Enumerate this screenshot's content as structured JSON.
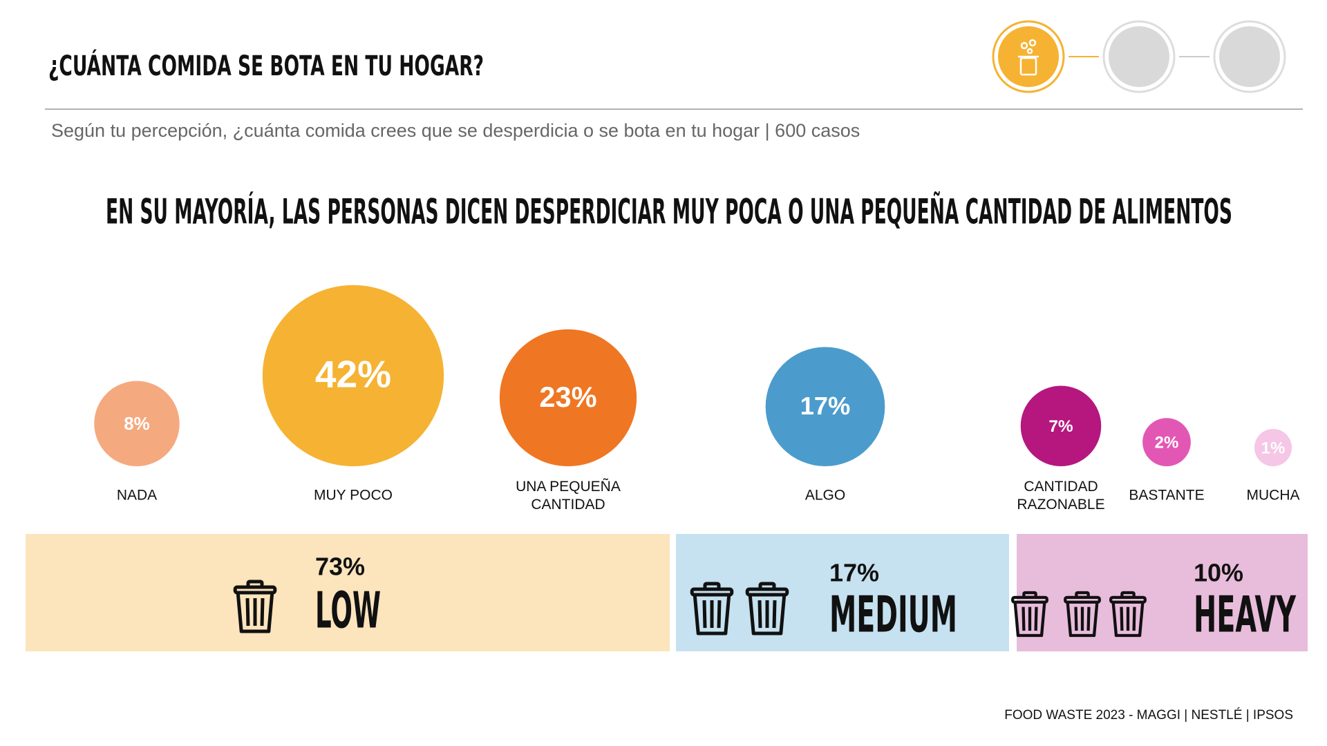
{
  "header": {
    "title": "¿CUÁNTA COMIDA SE BOTA EN TU HOGAR?",
    "subtitle": "Según tu percepción, ¿cuánta comida crees que se desperdicia o se bota en tu hogar | 600 casos"
  },
  "chart_data": {
    "type": "bubble",
    "title": "EN SU MAYORÍA, LAS PERSONAS DICEN DESPERDICIAR MUY POCA O UNA PEQUEÑA CANTIDAD DE ALIMENTOS",
    "categories": [
      "NADA",
      "MUY POCO",
      "UNA PEQUEÑA CANTIDAD",
      "ALGO",
      "CANTIDAD RAZONABLE",
      "BASTANTE",
      "MUCHA"
    ],
    "values": [
      8,
      42,
      23,
      17,
      7,
      2,
      1
    ],
    "value_labels": [
      "8%",
      "42%",
      "23%",
      "17%",
      "7%",
      "2%",
      "1%"
    ],
    "colors": [
      "#f5a97f",
      "#f6b232",
      "#ef7622",
      "#4b9ccc",
      "#b5177f",
      "#e357b4",
      "#f5c6e6"
    ]
  },
  "groups": [
    {
      "percent": "73%",
      "name": "LOW",
      "color": "#fce4bd"
    },
    {
      "percent": "17%",
      "name": "MEDIUM",
      "color": "#c6e1f0"
    },
    {
      "percent": "10%",
      "name": "HEAVY",
      "color": "#e8bcdb"
    }
  ],
  "footer": "FOOD WASTE 2023 - MAGGI | NESTLÉ | IPSOS"
}
